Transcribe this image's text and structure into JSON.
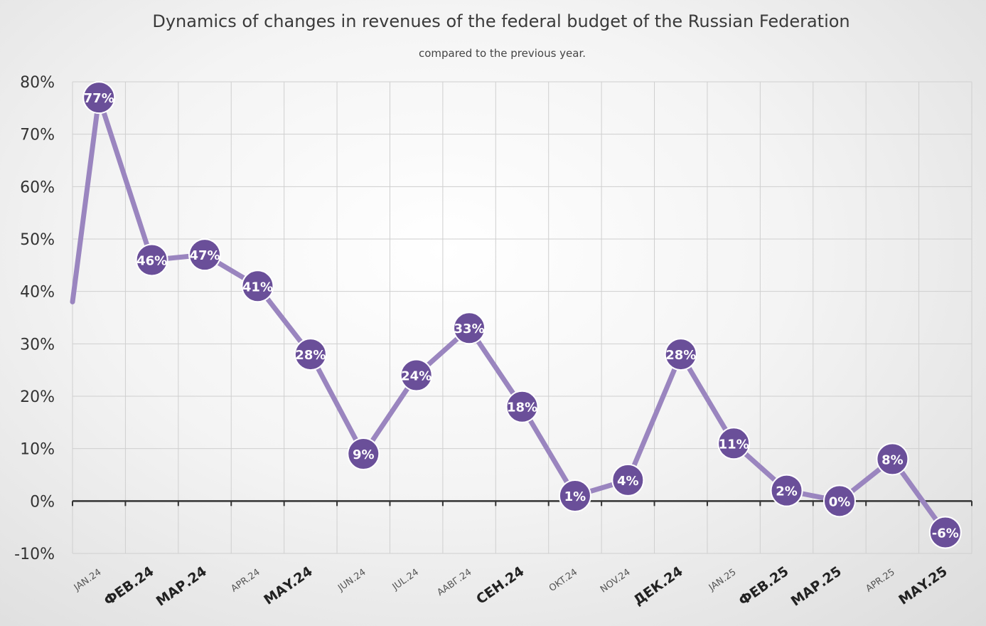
{
  "chart_data": {
    "type": "line",
    "title": "Dynamics of changes in revenues of the federal budget of the Russian Federation",
    "subtitle": "compared to the previous year.",
    "categories": [
      "JAN.24",
      "ФЕВ.24",
      "МАР.24",
      "APR.24",
      "МАY.24",
      "JUN.24",
      "JUL.24",
      "ААВГ.24",
      "СЕН.24",
      "OKT.24",
      "NOV.24",
      "ДЕК.24",
      "JAN.25",
      "ФЕВ.25",
      "МАР.25",
      "APR.25",
      "МАY.25"
    ],
    "series": [
      {
        "values": [
          77,
          46,
          47,
          41,
          28,
          9,
          24,
          33,
          18,
          1,
          4,
          28,
          11,
          2,
          0,
          8,
          -6
        ],
        "labels": [
          "77%",
          "46%",
          "47%",
          "41%",
          "28%",
          "9%",
          "24%",
          "33%",
          "18%",
          "1%",
          "4%",
          "28%",
          "11%",
          "2%",
          "0%",
          "8%",
          "-6%"
        ]
      }
    ],
    "ylim": [
      -10,
      80
    ],
    "yticks": [
      -10,
      0,
      10,
      20,
      30,
      40,
      50,
      60,
      70,
      80
    ],
    "ytick_labels": [
      "-10%",
      "0%",
      "10%",
      "20%",
      "30%",
      "40%",
      "50%",
      "60%",
      "70%",
      "80%"
    ],
    "xlabel": "",
    "ylabel": "",
    "grid": true,
    "legend": "none",
    "colors": {
      "line": "#9a85bf",
      "marker_fill": "#6a4f99",
      "marker_stroke": "#ffffff",
      "grid": "#cfcfcf",
      "zero_line": "#333333"
    }
  }
}
